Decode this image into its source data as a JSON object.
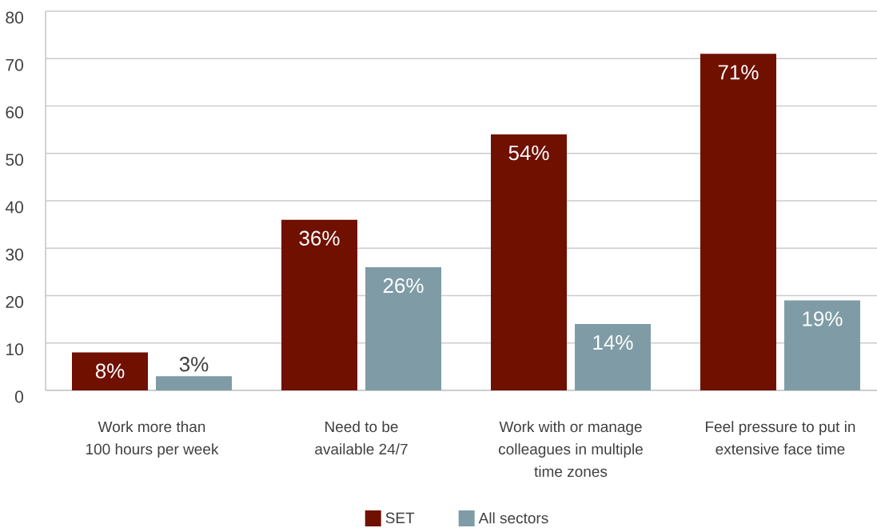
{
  "chart_data": {
    "type": "bar",
    "categories": [
      "Work more than 100 hours per week",
      "Need to be available 24/7",
      "Work with or manage colleagues in multiple time zones",
      "Feel pressure to put in extensive face time"
    ],
    "series": [
      {
        "name": "SET",
        "color": "#701000",
        "values": [
          8,
          36,
          54,
          71
        ],
        "value_labels": [
          "8%",
          "36%",
          "54%",
          "71%"
        ]
      },
      {
        "name": "All sectors",
        "color": "#7f9ca6",
        "values": [
          3,
          26,
          14,
          19
        ],
        "value_labels": [
          "3%",
          "26%",
          "14%",
          "19%"
        ]
      }
    ],
    "ylim": [
      0,
      80
    ],
    "yticks": [
      0,
      10,
      20,
      30,
      40,
      50,
      60,
      70,
      80
    ],
    "grid": "y",
    "legend": "bottom"
  }
}
